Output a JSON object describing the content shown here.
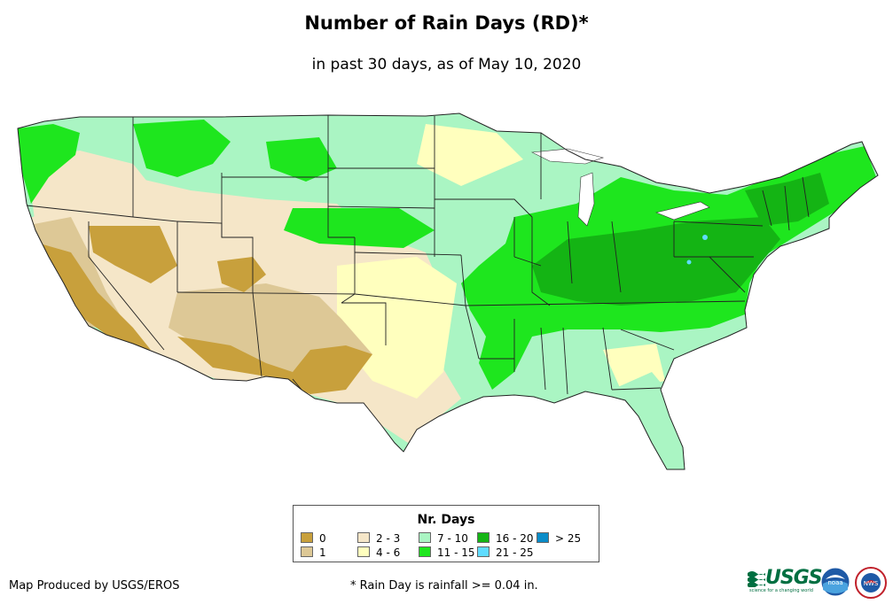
{
  "title": "Number of Rain Days (RD)*",
  "subtitle": "in past 30 days, as of May 10, 2020",
  "legend": {
    "title": "Nr. Days",
    "items": [
      {
        "label": "0",
        "color": "#c8a03c"
      },
      {
        "label": "1",
        "color": "#ddc896"
      },
      {
        "label": "2 - 3",
        "color": "#f5e6c8"
      },
      {
        "label": "4 - 6",
        "color": "#ffffbe"
      },
      {
        "label": "7 - 10",
        "color": "#aaf5c3"
      },
      {
        "label": "11 - 15",
        "color": "#1ee61e"
      },
      {
        "label": "16 - 20",
        "color": "#14b414"
      },
      {
        "label": "21 - 25",
        "color": "#5fdcff"
      },
      {
        "label": "> 25",
        "color": "#0a8cc8"
      }
    ]
  },
  "credit": "Map Produced by USGS/EROS",
  "footnote": "* Rain Day is rainfall >= 0.04 in.",
  "logos": {
    "usgs": "USGS",
    "usgs_tagline": "science for a changing world",
    "noaa": "noaa",
    "nws": "NWS"
  }
}
